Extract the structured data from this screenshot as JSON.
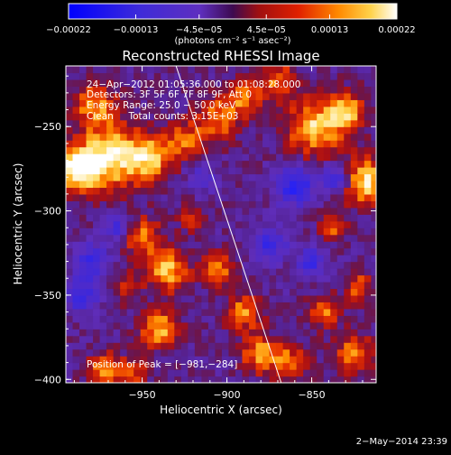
{
  "chart_data": {
    "type": "heatmap",
    "title": "Reconstructed RHESSI Image",
    "xlabel": "Heliocentric X (arcsec)",
    "ylabel": "Heliocentric Y (arcsec)",
    "xlim": [
      -995,
      -812
    ],
    "ylim": [
      -402,
      -214
    ],
    "x_ticks": [
      -950,
      -900,
      -850
    ],
    "x_tick_labels": [
      "−950",
      "−900",
      "−850"
    ],
    "y_ticks": [
      -250,
      -300,
      -350,
      -400
    ],
    "y_tick_labels": [
      "−250",
      "−300",
      "−350",
      "−400"
    ],
    "colorbar": {
      "min": -0.00022,
      "max": 0.00022,
      "tick_values": [
        -0.00022,
        -0.00013,
        -4.5e-05,
        4.5e-05,
        0.00013,
        0.00022
      ],
      "tick_labels": [
        "−0.00022",
        "−0.00013",
        "−4.5e−05",
        "4.5e−05",
        "0.00013",
        "0.00022"
      ],
      "unit_label": "(photons cm⁻² s⁻¹ asec⁻²)"
    },
    "annotations": [
      "24−Apr−2012 01:05:36.000 to 01:08:28.000",
      "Detectors: 3F 5F 6F 7F 8F 9F, Att 0",
      "Energy Range: 25.0 − 50.0 keV",
      "Clean     Total counts: 3.15E+03"
    ],
    "peak_label": "Position of Peak = [−981,−284]",
    "peak_position": [
      -981,
      -284
    ],
    "timestamp": "2−May−2014 23:39",
    "limb": {
      "description_points": [
        [
          -930,
          -214
        ],
        [
          -868,
          -402
        ]
      ]
    },
    "sources": [
      {
        "x": -978,
        "y": -236,
        "s": 9,
        "a": 0.9
      },
      {
        "x": -970,
        "y": -268,
        "s": 14,
        "a": 1.35
      },
      {
        "x": -988,
        "y": -275,
        "s": 8,
        "a": 1.4
      },
      {
        "x": -945,
        "y": -268,
        "s": 9,
        "a": 1.1
      },
      {
        "x": -925,
        "y": -258,
        "s": 8,
        "a": 0.8
      },
      {
        "x": -905,
        "y": -245,
        "s": 9,
        "a": 0.9
      },
      {
        "x": -890,
        "y": -232,
        "s": 7,
        "a": 0.9
      },
      {
        "x": -870,
        "y": -222,
        "s": 8,
        "a": 0.8
      },
      {
        "x": -848,
        "y": -250,
        "s": 12,
        "a": 1.2
      },
      {
        "x": -828,
        "y": -240,
        "s": 8,
        "a": 1.0
      },
      {
        "x": -818,
        "y": -282,
        "s": 10,
        "a": 1.3
      },
      {
        "x": -838,
        "y": -310,
        "s": 6,
        "a": 0.7
      },
      {
        "x": -950,
        "y": -315,
        "s": 8,
        "a": 0.9
      },
      {
        "x": -935,
        "y": -335,
        "s": 9,
        "a": 1.1
      },
      {
        "x": -940,
        "y": -370,
        "s": 8,
        "a": 1.1
      },
      {
        "x": -960,
        "y": -345,
        "s": 6,
        "a": 0.7
      },
      {
        "x": -905,
        "y": -335,
        "s": 7,
        "a": 0.9
      },
      {
        "x": -890,
        "y": -360,
        "s": 8,
        "a": 0.9
      },
      {
        "x": -880,
        "y": -385,
        "s": 8,
        "a": 1.0
      },
      {
        "x": -862,
        "y": -390,
        "s": 7,
        "a": 0.9
      },
      {
        "x": -842,
        "y": -360,
        "s": 7,
        "a": 0.8
      },
      {
        "x": -825,
        "y": -385,
        "s": 8,
        "a": 1.0
      },
      {
        "x": -822,
        "y": -345,
        "s": 6,
        "a": 0.8
      },
      {
        "x": -972,
        "y": -395,
        "s": 8,
        "a": 0.9
      },
      {
        "x": -920,
        "y": -305,
        "s": 6,
        "a": 0.6
      },
      {
        "x": -955,
        "y": -395,
        "s": 6,
        "a": 0.7
      },
      {
        "x": -965,
        "y": -310,
        "s": 5,
        "a": -0.9
      },
      {
        "x": -980,
        "y": -330,
        "s": 7,
        "a": -1.0
      },
      {
        "x": -860,
        "y": -285,
        "s": 8,
        "a": -1.2
      },
      {
        "x": -835,
        "y": -280,
        "s": 6,
        "a": -1.0
      },
      {
        "x": -875,
        "y": -320,
        "s": 7,
        "a": -1.0
      },
      {
        "x": -850,
        "y": -330,
        "s": 6,
        "a": -0.9
      },
      {
        "x": -985,
        "y": -350,
        "s": 7,
        "a": -1.0
      },
      {
        "x": -915,
        "y": -280,
        "s": 6,
        "a": -0.6
      }
    ]
  }
}
